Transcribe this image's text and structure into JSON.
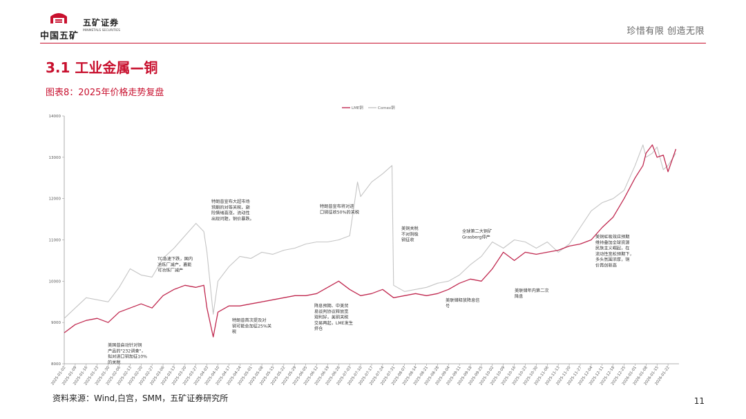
{
  "header": {
    "company_cn": "中国五矿",
    "brand": "五矿证券",
    "brand_en": "MINMETALS SECURITIES",
    "slogan": "珍惜有限  创造无限"
  },
  "section_title": "3.1 工业金属—铜",
  "figure_title": "图表8：2025年价格走势复盘",
  "source": "资料来源：Wind,白宫，SMM，五矿证券研究所",
  "page_number": "11",
  "colors": {
    "accent": "#c8102e",
    "lme_line": "#c0284f",
    "comex_line": "#c4c4c4"
  },
  "chart_data": {
    "type": "line",
    "title": "",
    "xlabel": "",
    "ylabel": "",
    "ylim": [
      8000,
      14000
    ],
    "yticks": [
      8000,
      9000,
      10000,
      11000,
      12000,
      13000,
      14000
    ],
    "grid": false,
    "legend_position": "top-center",
    "x_ticks": [
      "2025-01-02",
      "2025-01-09",
      "2025-01-16",
      "2025-01-23",
      "2025-01-30",
      "2025-02-06",
      "2025-02-13",
      "2025-02-20",
      "2025-02-27",
      "2025-03-06",
      "2025-03-13",
      "2025-03-20",
      "2025-03-27",
      "2025-04-03",
      "2025-04-10",
      "2025-04-17",
      "2025-04-24",
      "2025-05-01",
      "2025-05-08",
      "2025-05-15",
      "2025-05-22",
      "2025-05-29",
      "2025-06-05",
      "2025-06-12",
      "2025-06-19",
      "2025-06-26",
      "2025-07-03",
      "2025-07-10",
      "2025-07-17",
      "2025-07-24",
      "2025-07-31",
      "2025-08-07",
      "2025-08-14",
      "2025-08-21",
      "2025-08-28",
      "2025-09-04",
      "2025-09-11",
      "2025-09-18",
      "2025-09-25",
      "2025-10-02",
      "2025-10-09",
      "2025-10-16",
      "2025-10-23",
      "2025-10-30",
      "2025-11-06",
      "2025-11-13",
      "2025-11-20",
      "2025-11-27",
      "2025-12-04",
      "2025-12-11",
      "2025-12-18",
      "2025-12-25",
      "2026-01-01",
      "2026-01-08",
      "2026-01-15",
      "2026-01-22"
    ],
    "series": [
      {
        "name": "LME铜",
        "color": "#c0284f",
        "x": [
          "2025-01-02",
          "2025-01-09",
          "2025-01-16",
          "2025-01-23",
          "2025-01-30",
          "2025-02-06",
          "2025-02-13",
          "2025-02-20",
          "2025-02-27",
          "2025-03-06",
          "2025-03-13",
          "2025-03-20",
          "2025-03-27",
          "2025-04-01",
          "2025-04-03",
          "2025-04-07",
          "2025-04-10",
          "2025-04-17",
          "2025-04-24",
          "2025-05-01",
          "2025-05-08",
          "2025-05-15",
          "2025-05-22",
          "2025-05-29",
          "2025-06-05",
          "2025-06-12",
          "2025-06-19",
          "2025-06-26",
          "2025-07-03",
          "2025-07-10",
          "2025-07-17",
          "2025-07-24",
          "2025-07-31",
          "2025-08-07",
          "2025-08-14",
          "2025-08-21",
          "2025-08-28",
          "2025-09-04",
          "2025-09-11",
          "2025-09-18",
          "2025-09-25",
          "2025-10-02",
          "2025-10-09",
          "2025-10-16",
          "2025-10-23",
          "2025-10-30",
          "2025-11-06",
          "2025-11-13",
          "2025-11-20",
          "2025-11-27",
          "2025-12-04",
          "2025-12-11",
          "2025-12-18",
          "2025-12-25",
          "2026-01-01",
          "2026-01-06",
          "2026-01-08",
          "2026-01-12",
          "2026-01-15",
          "2026-01-19",
          "2026-01-22",
          "2026-01-27"
        ],
        "values": [
          8750,
          8950,
          9050,
          9100,
          9000,
          9250,
          9350,
          9450,
          9350,
          9650,
          9800,
          9900,
          9850,
          9900,
          9350,
          8650,
          9250,
          9400,
          9400,
          9450,
          9500,
          9550,
          9600,
          9650,
          9650,
          9700,
          9850,
          10000,
          9800,
          9650,
          9700,
          9800,
          9600,
          9650,
          9700,
          9650,
          9700,
          9800,
          9950,
          10050,
          10000,
          10300,
          10700,
          10500,
          10700,
          10650,
          10700,
          10750,
          10850,
          10900,
          11000,
          11300,
          11550,
          12000,
          12500,
          12800,
          13100,
          13300,
          13000,
          13050,
          12650,
          13200
        ]
      },
      {
        "name": "Comex铜",
        "color": "#c4c4c4",
        "x": [
          "2025-01-02",
          "2025-01-09",
          "2025-01-16",
          "2025-01-23",
          "2025-01-30",
          "2025-02-06",
          "2025-02-13",
          "2025-02-20",
          "2025-02-27",
          "2025-03-06",
          "2025-03-13",
          "2025-03-20",
          "2025-03-27",
          "2025-04-01",
          "2025-04-03",
          "2025-04-07",
          "2025-04-10",
          "2025-04-17",
          "2025-04-24",
          "2025-05-01",
          "2025-05-08",
          "2025-05-15",
          "2025-05-22",
          "2025-05-29",
          "2025-06-05",
          "2025-06-12",
          "2025-06-19",
          "2025-06-26",
          "2025-07-03",
          "2025-07-08",
          "2025-07-10",
          "2025-07-17",
          "2025-07-24",
          "2025-07-30",
          "2025-07-31",
          "2025-08-07",
          "2025-08-14",
          "2025-08-21",
          "2025-08-28",
          "2025-09-04",
          "2025-09-11",
          "2025-09-18",
          "2025-09-25",
          "2025-10-02",
          "2025-10-09",
          "2025-10-16",
          "2025-10-23",
          "2025-10-30",
          "2025-11-06",
          "2025-11-13",
          "2025-11-20",
          "2025-11-27",
          "2025-12-04",
          "2025-12-11",
          "2025-12-18",
          "2025-12-25",
          "2026-01-01",
          "2026-01-06",
          "2026-01-08",
          "2026-01-12",
          "2026-01-15",
          "2026-01-19",
          "2026-01-22",
          "2026-01-27"
        ],
        "values": [
          9100,
          9350,
          9600,
          9550,
          9500,
          9850,
          10300,
          10150,
          10100,
          10550,
          10800,
          11100,
          11400,
          11200,
          10700,
          9200,
          10000,
          10350,
          10600,
          10550,
          10700,
          10650,
          10750,
          10800,
          10900,
          10950,
          10950,
          11000,
          11100,
          12400,
          12050,
          12400,
          12600,
          12800,
          9900,
          9750,
          9800,
          9850,
          9950,
          10000,
          10150,
          10400,
          10600,
          10950,
          10800,
          11000,
          10950,
          10800,
          10950,
          10700,
          10900,
          11300,
          11700,
          11900,
          12000,
          12200,
          12800,
          13300,
          13000,
          13100,
          13250,
          12700,
          12800,
          13100
        ]
      }
    ],
    "annotations": [
      {
        "lines": [
          "美国普启动针对铜",
          "产品的\"232调查\"，",
          "拟对进口铜加征10%",
          "的关税"
        ],
        "marker": "2025-02-25"
      },
      {
        "lines": [
          "TC急速下跌，国内",
          "冶炼厂减产，嘉能",
          "可冶炼厂减产"
        ],
        "marker": "2025-03-13"
      },
      {
        "lines": [
          "特朗普宣布大超市场",
          "预期的对等关税，避",
          "险情绪高涨，流动性",
          "出现问题，铜价暴跌。"
        ],
        "marker": "2025-04-03"
      },
      {
        "lines": [
          "特朗普首次提及对",
          "铜可能会加征25%关",
          "税"
        ],
        "marker": "2025-02-25"
      },
      {
        "lines": [
          "特朗普宣布将对进",
          "口铜征收50%的关税"
        ],
        "marker": "2025-07-08"
      },
      {
        "lines": [
          "降息预期、中美贸",
          "易谈判协议释放宽",
          "观利好，美铜关税",
          "交易再起，LME发生",
          "挤仓"
        ],
        "marker": "2025-06-19"
      },
      {
        "lines": [
          "美铜关税",
          "不对阴极",
          "铜征收"
        ],
        "marker": "2025-07-30"
      },
      {
        "lines": [
          "美联储释放降息信",
          "号"
        ],
        "marker": "2025-08-22"
      },
      {
        "lines": [
          "全球第二大铜矿",
          "Grasberg停产"
        ],
        "marker": "2025-09-24"
      },
      {
        "lines": [
          "美联储年内第二次",
          "降息"
        ],
        "marker": "2025-10-29"
      },
      {
        "lines": [
          "美铜虹吸效应预期",
          "维持叠加全球资源",
          "民族主义崛起，在",
          "流动性宽松预期下，",
          "多头氛围浓厚，铜",
          "价再创新高"
        ],
        "marker": "2025-12-10"
      }
    ]
  }
}
